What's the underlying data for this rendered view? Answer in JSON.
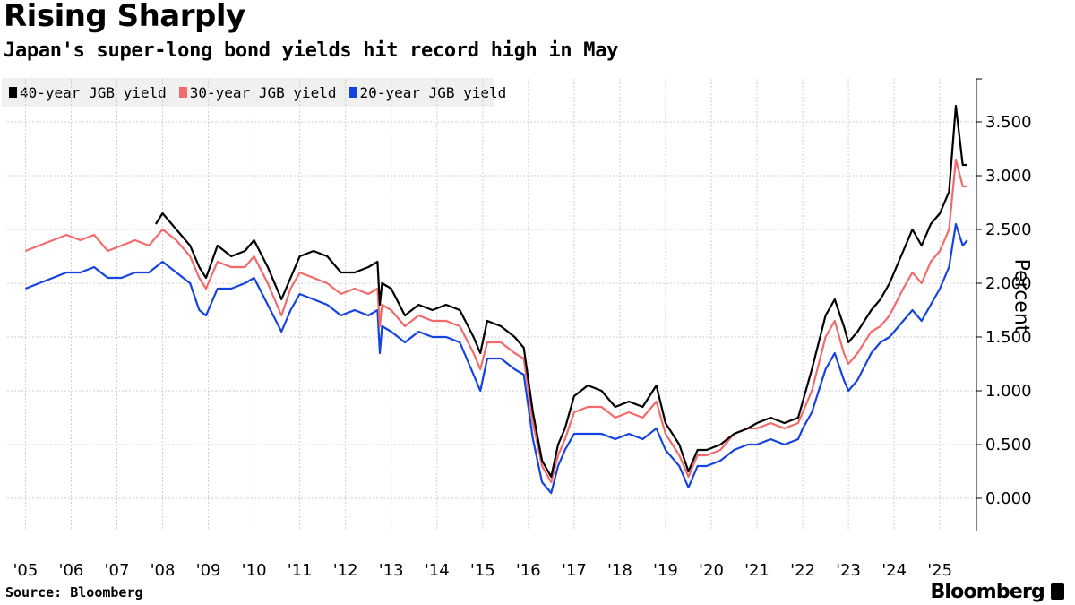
{
  "header": {
    "title": "Rising Sharply",
    "subtitle": "Japan's super-long bond yields hit record high in May"
  },
  "footer": {
    "source": "Source: Bloomberg",
    "brand": "Bloomberg"
  },
  "colors": {
    "y40": "#000000",
    "y30": "#f26b6b",
    "y20": "#1443e0",
    "grid": "#cfcfcf"
  },
  "chart_data": {
    "type": "line",
    "title": "Rising Sharply",
    "subtitle": "Japan's super-long bond yields hit record high in May",
    "ylabel": "Percent",
    "xlabel": "",
    "ylim": [
      -0.3,
      3.9
    ],
    "yticks": [
      "0.000",
      "0.500",
      "1.000",
      "1.500",
      "2.000",
      "2.500",
      "3.000",
      "3.500"
    ],
    "xticks": [
      "'05",
      "'06",
      "'07",
      "'08",
      "'09",
      "'10",
      "'11",
      "'12",
      "'13",
      "'14",
      "'15",
      "'16",
      "'17",
      "'18",
      "'19",
      "'20",
      "'21",
      "'22",
      "'23",
      "'24",
      "'25"
    ],
    "grid": true,
    "legend_position": "top-left",
    "series": [
      {
        "name": "40-year JGB yield",
        "color": "#000000",
        "x": [
          2007.85,
          2008.0,
          2008.3,
          2008.6,
          2008.8,
          2008.95,
          2009.2,
          2009.5,
          2009.8,
          2010.0,
          2010.3,
          2010.6,
          2010.8,
          2011.0,
          2011.3,
          2011.6,
          2011.9,
          2012.2,
          2012.5,
          2012.7,
          2012.75,
          2012.8,
          2013.0,
          2013.3,
          2013.6,
          2013.9,
          2014.2,
          2014.5,
          2014.8,
          2014.95,
          2015.1,
          2015.4,
          2015.7,
          2015.9,
          2016.1,
          2016.3,
          2016.5,
          2016.65,
          2016.8,
          2017.0,
          2017.3,
          2017.6,
          2017.9,
          2018.2,
          2018.5,
          2018.8,
          2019.0,
          2019.3,
          2019.5,
          2019.7,
          2019.9,
          2020.2,
          2020.5,
          2020.8,
          2021.0,
          2021.3,
          2021.6,
          2021.9,
          2022.0,
          2022.2,
          2022.5,
          2022.7,
          2022.9,
          2023.0,
          2023.2,
          2023.5,
          2023.7,
          2023.9,
          2024.2,
          2024.4,
          2024.6,
          2024.8,
          2025.0,
          2025.2,
          2025.35,
          2025.5,
          2025.6
        ],
        "values": [
          2.55,
          2.65,
          2.5,
          2.35,
          2.15,
          2.05,
          2.35,
          2.25,
          2.3,
          2.4,
          2.15,
          1.85,
          2.05,
          2.25,
          2.3,
          2.25,
          2.1,
          2.1,
          2.15,
          2.2,
          1.8,
          2.0,
          1.95,
          1.7,
          1.8,
          1.75,
          1.8,
          1.75,
          1.5,
          1.35,
          1.65,
          1.6,
          1.5,
          1.4,
          0.8,
          0.35,
          0.2,
          0.5,
          0.65,
          0.95,
          1.05,
          1.0,
          0.85,
          0.9,
          0.85,
          1.05,
          0.7,
          0.5,
          0.25,
          0.45,
          0.45,
          0.5,
          0.6,
          0.65,
          0.7,
          0.75,
          0.7,
          0.75,
          0.9,
          1.2,
          1.7,
          1.85,
          1.6,
          1.45,
          1.55,
          1.75,
          1.85,
          2.0,
          2.3,
          2.5,
          2.35,
          2.55,
          2.65,
          2.85,
          3.65,
          3.1,
          3.1
        ]
      },
      {
        "name": "30-year JGB yield",
        "color": "#f26b6b",
        "x": [
          2005.0,
          2005.3,
          2005.6,
          2005.9,
          2006.2,
          2006.5,
          2006.8,
          2007.1,
          2007.4,
          2007.7,
          2008.0,
          2008.3,
          2008.6,
          2008.8,
          2008.95,
          2009.2,
          2009.5,
          2009.8,
          2010.0,
          2010.3,
          2010.6,
          2010.8,
          2011.0,
          2011.3,
          2011.6,
          2011.9,
          2012.2,
          2012.5,
          2012.7,
          2012.75,
          2012.8,
          2013.0,
          2013.3,
          2013.6,
          2013.9,
          2014.2,
          2014.5,
          2014.8,
          2014.95,
          2015.1,
          2015.4,
          2015.7,
          2015.9,
          2016.1,
          2016.3,
          2016.5,
          2016.65,
          2016.8,
          2017.0,
          2017.3,
          2017.6,
          2017.9,
          2018.2,
          2018.5,
          2018.8,
          2019.0,
          2019.3,
          2019.5,
          2019.7,
          2019.9,
          2020.2,
          2020.5,
          2020.8,
          2021.0,
          2021.3,
          2021.6,
          2021.9,
          2022.0,
          2022.2,
          2022.5,
          2022.7,
          2022.9,
          2023.0,
          2023.2,
          2023.5,
          2023.7,
          2023.9,
          2024.2,
          2024.4,
          2024.6,
          2024.8,
          2025.0,
          2025.2,
          2025.35,
          2025.5,
          2025.6
        ],
        "values": [
          2.3,
          2.35,
          2.4,
          2.45,
          2.4,
          2.45,
          2.3,
          2.35,
          2.4,
          2.35,
          2.5,
          2.4,
          2.25,
          2.05,
          1.95,
          2.2,
          2.15,
          2.15,
          2.25,
          2.0,
          1.7,
          1.95,
          2.1,
          2.05,
          2.0,
          1.9,
          1.95,
          1.9,
          1.95,
          1.6,
          1.8,
          1.75,
          1.6,
          1.7,
          1.65,
          1.65,
          1.6,
          1.35,
          1.2,
          1.45,
          1.45,
          1.35,
          1.3,
          0.7,
          0.3,
          0.15,
          0.4,
          0.55,
          0.8,
          0.85,
          0.85,
          0.75,
          0.8,
          0.75,
          0.9,
          0.6,
          0.4,
          0.2,
          0.4,
          0.4,
          0.45,
          0.6,
          0.65,
          0.65,
          0.7,
          0.65,
          0.7,
          0.8,
          1.0,
          1.5,
          1.65,
          1.35,
          1.25,
          1.35,
          1.55,
          1.6,
          1.7,
          1.95,
          2.1,
          2.0,
          2.2,
          2.3,
          2.5,
          3.15,
          2.9,
          2.9
        ]
      },
      {
        "name": "20-year JGB yield",
        "color": "#1443e0",
        "x": [
          2005.0,
          2005.3,
          2005.6,
          2005.9,
          2006.2,
          2006.5,
          2006.8,
          2007.1,
          2007.4,
          2007.7,
          2008.0,
          2008.3,
          2008.6,
          2008.8,
          2008.95,
          2009.2,
          2009.5,
          2009.8,
          2010.0,
          2010.3,
          2010.6,
          2010.8,
          2011.0,
          2011.3,
          2011.6,
          2011.9,
          2012.2,
          2012.5,
          2012.7,
          2012.75,
          2012.8,
          2013.0,
          2013.3,
          2013.6,
          2013.9,
          2014.2,
          2014.5,
          2014.8,
          2014.95,
          2015.1,
          2015.4,
          2015.7,
          2015.9,
          2016.1,
          2016.3,
          2016.5,
          2016.65,
          2016.8,
          2017.0,
          2017.3,
          2017.6,
          2017.9,
          2018.2,
          2018.5,
          2018.8,
          2019.0,
          2019.3,
          2019.5,
          2019.7,
          2019.9,
          2020.2,
          2020.5,
          2020.8,
          2021.0,
          2021.3,
          2021.6,
          2021.9,
          2022.0,
          2022.2,
          2022.5,
          2022.7,
          2022.9,
          2023.0,
          2023.2,
          2023.5,
          2023.7,
          2023.9,
          2024.2,
          2024.4,
          2024.6,
          2024.8,
          2025.0,
          2025.2,
          2025.35,
          2025.5,
          2025.6
        ],
        "values": [
          1.95,
          2.0,
          2.05,
          2.1,
          2.1,
          2.15,
          2.05,
          2.05,
          2.1,
          2.1,
          2.2,
          2.1,
          2.0,
          1.75,
          1.7,
          1.95,
          1.95,
          2.0,
          2.05,
          1.8,
          1.55,
          1.75,
          1.9,
          1.85,
          1.8,
          1.7,
          1.75,
          1.7,
          1.75,
          1.35,
          1.6,
          1.55,
          1.45,
          1.55,
          1.5,
          1.5,
          1.45,
          1.15,
          1.0,
          1.3,
          1.3,
          1.2,
          1.15,
          0.55,
          0.15,
          0.05,
          0.3,
          0.45,
          0.6,
          0.6,
          0.6,
          0.55,
          0.6,
          0.55,
          0.65,
          0.45,
          0.3,
          0.1,
          0.3,
          0.3,
          0.35,
          0.45,
          0.5,
          0.5,
          0.55,
          0.5,
          0.55,
          0.65,
          0.8,
          1.2,
          1.35,
          1.1,
          1.0,
          1.1,
          1.35,
          1.45,
          1.5,
          1.65,
          1.75,
          1.65,
          1.8,
          1.95,
          2.15,
          2.55,
          2.35,
          2.4
        ]
      }
    ]
  }
}
